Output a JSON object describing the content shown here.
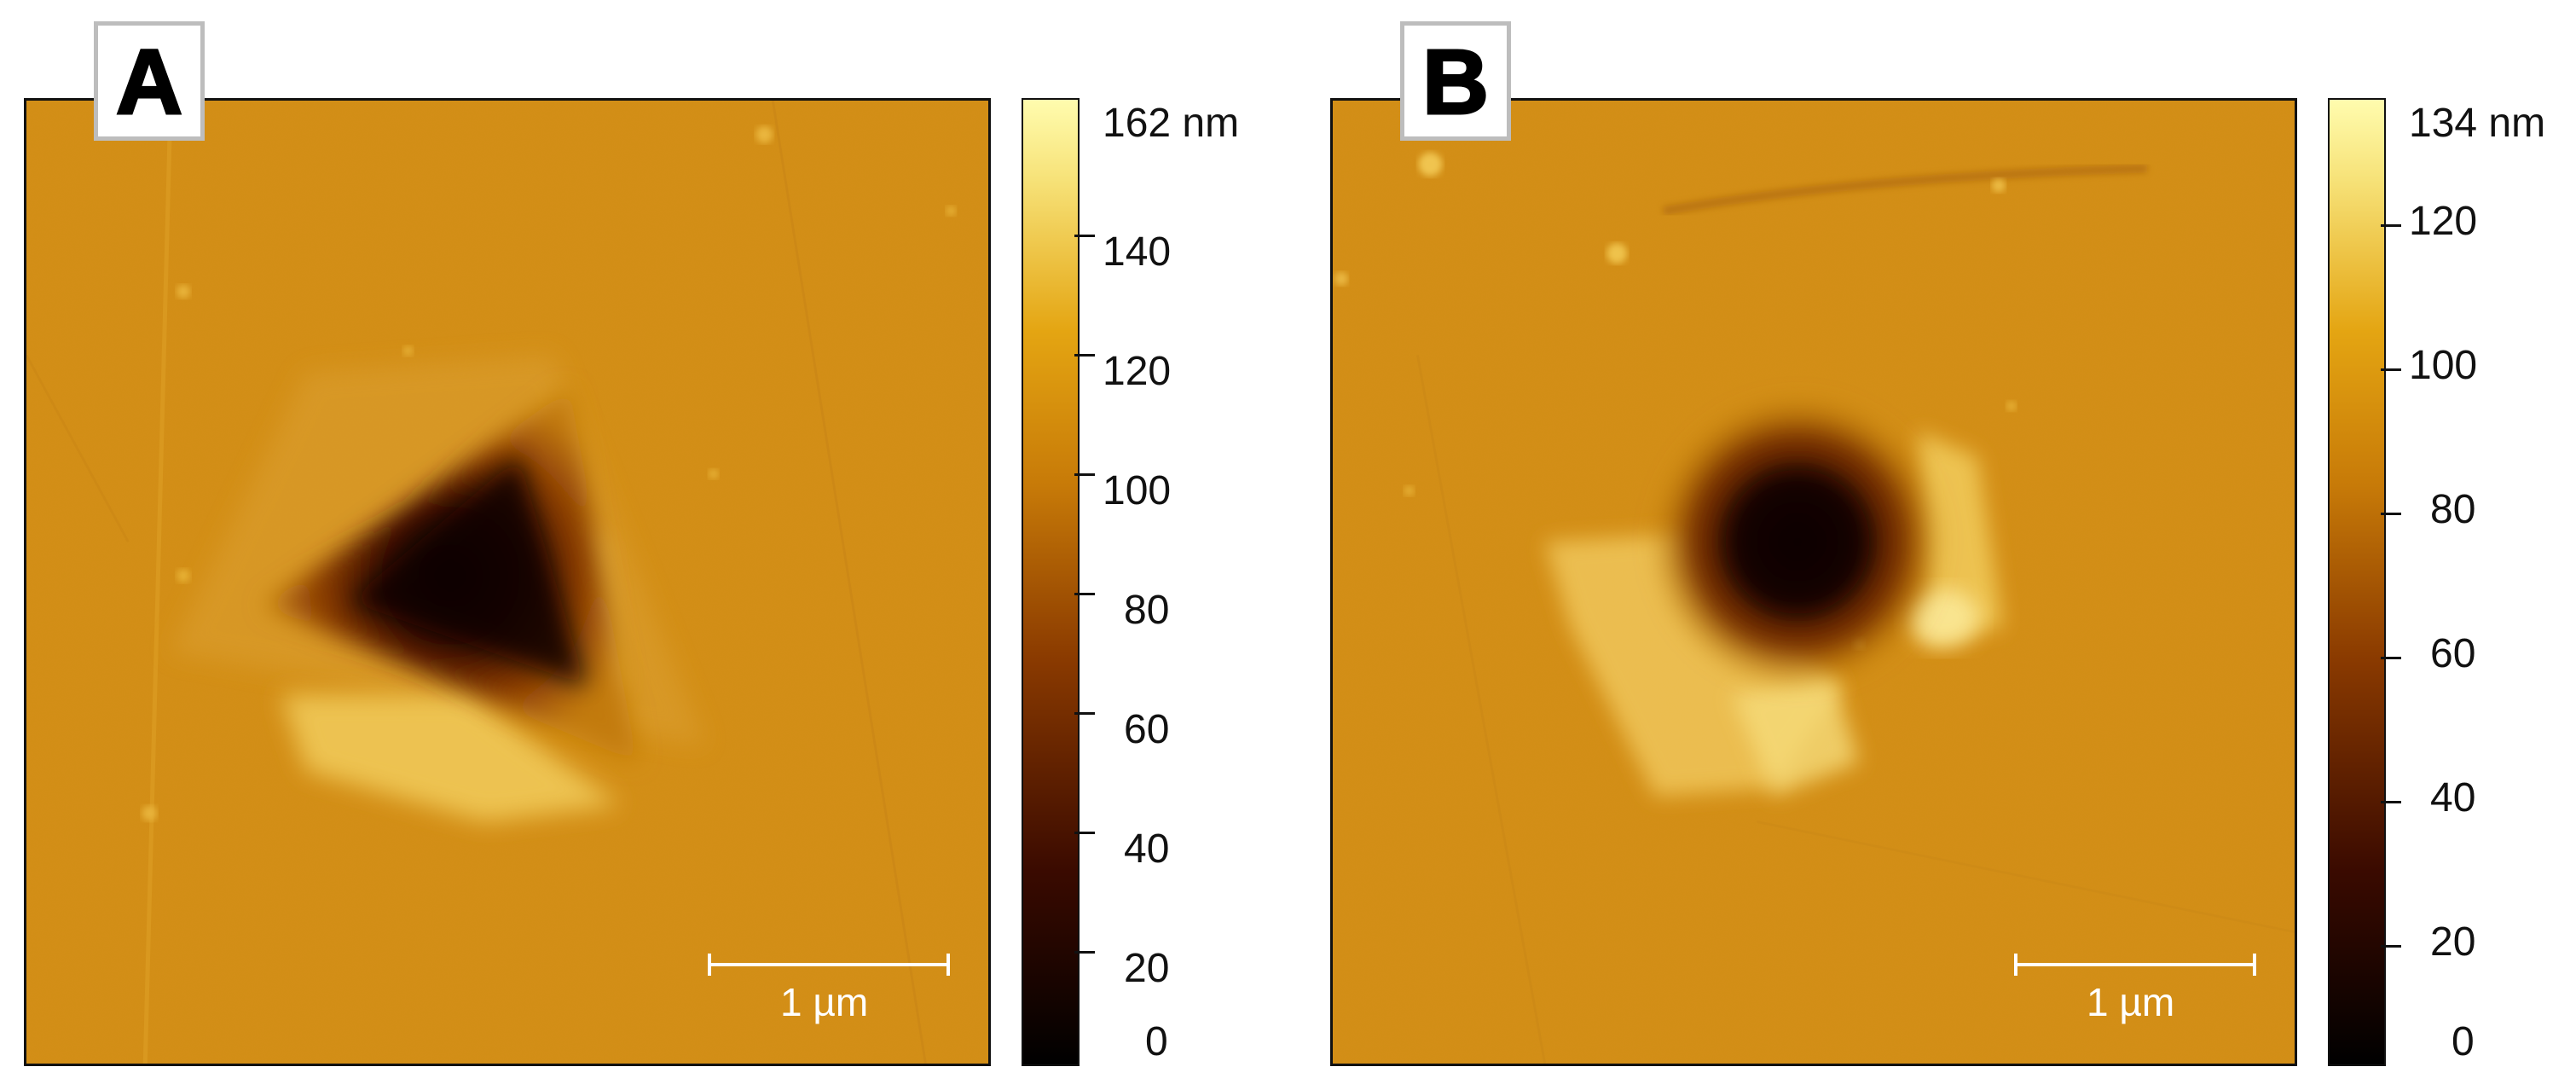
{
  "panels": [
    {
      "letter": "A",
      "colorbar": {
        "max_label": "162 nm",
        "ticks": [
          "140",
          "120",
          "100",
          "80",
          "60",
          "40",
          "20",
          "0"
        ],
        "max_value": 162
      },
      "scale_bar": "1 µm",
      "feature": "triangular-indent"
    },
    {
      "letter": "B",
      "colorbar": {
        "max_label": "134 nm",
        "ticks": [
          "120",
          "100",
          "80",
          "60",
          "40",
          "20",
          "0"
        ],
        "max_value": 134
      },
      "scale_bar": "1 µm",
      "feature": "circular-indent"
    }
  ],
  "colors": {
    "surface": "#d8911a",
    "colormap": [
      "#000000",
      "#3a0a00",
      "#8a3a00",
      "#c77a08",
      "#e4a512",
      "#f7e37a",
      "#fffcae"
    ]
  }
}
